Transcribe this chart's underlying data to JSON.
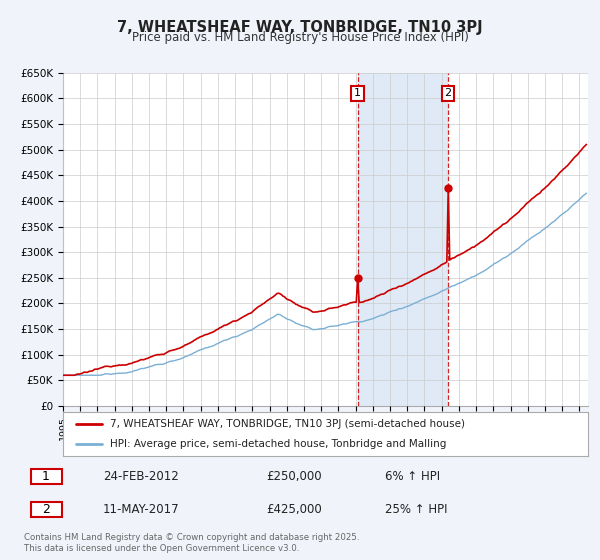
{
  "title": "7, WHEATSHEAF WAY, TONBRIDGE, TN10 3PJ",
  "subtitle": "Price paid vs. HM Land Registry's House Price Index (HPI)",
  "ylabel_ticks": [
    "£0",
    "£50K",
    "£100K",
    "£150K",
    "£200K",
    "£250K",
    "£300K",
    "£350K",
    "£400K",
    "£450K",
    "£500K",
    "£550K",
    "£600K",
    "£650K"
  ],
  "ytick_values": [
    0,
    50000,
    100000,
    150000,
    200000,
    250000,
    300000,
    350000,
    400000,
    450000,
    500000,
    550000,
    600000,
    650000
  ],
  "hpi_color": "#7bafd4",
  "hpi_fill_color": "#dce8f5",
  "price_color": "#cc0000",
  "sale1_date": "24-FEB-2012",
  "sale1_price": 250000,
  "sale1_pct": "6%",
  "sale1_x": 2012.12,
  "sale2_date": "11-MAY-2017",
  "sale2_price": 425000,
  "sale2_pct": "25%",
  "sale2_x": 2017.36,
  "xmin": 1995,
  "xmax": 2025.5,
  "ymin": 0,
  "ymax": 650000,
  "legend_line1": "7, WHEATSHEAF WAY, TONBRIDGE, TN10 3PJ (semi-detached house)",
  "legend_line2": "HPI: Average price, semi-detached house, Tonbridge and Malling",
  "footer": "Contains HM Land Registry data © Crown copyright and database right 2025.\nThis data is licensed under the Open Government Licence v3.0.",
  "background_color": "#f0f4fa",
  "plot_bg_color": "#ffffff",
  "grid_color": "#cccccc"
}
